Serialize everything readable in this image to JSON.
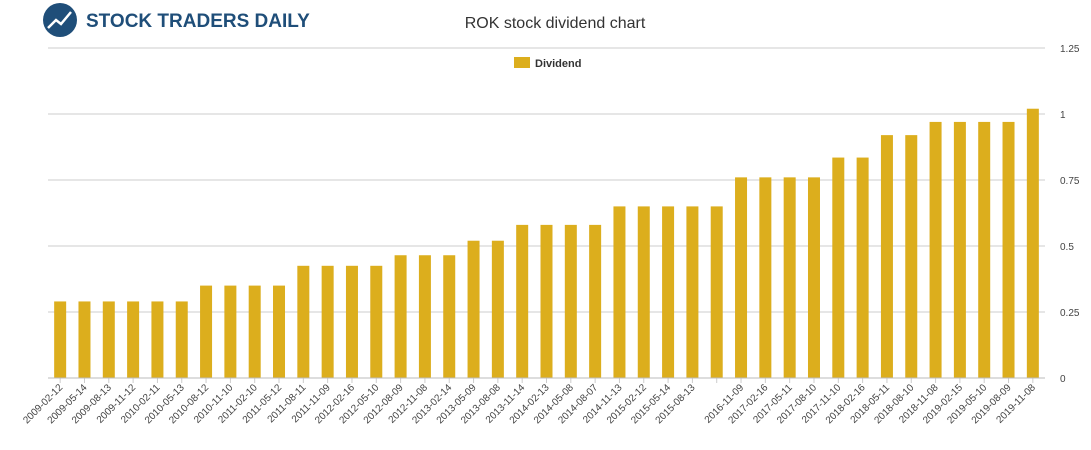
{
  "header": {
    "logo": "STOCK TRADERS DAILY"
  },
  "chart_data": {
    "type": "bar",
    "title": "ROK stock dividend chart",
    "categories": [
      "2009-02-12",
      "2009-05-14",
      "2009-08-13",
      "2009-11-12",
      "2010-02-11",
      "2010-05-13",
      "2010-08-12",
      "2010-11-10",
      "2011-02-10",
      "2011-05-12",
      "2011-08-11",
      "2011-11-09",
      "2012-02-16",
      "2012-05-10",
      "2012-08-09",
      "2012-11-08",
      "2013-02-14",
      "2013-05-09",
      "2013-08-08",
      "2013-11-14",
      "2014-02-13",
      "2014-05-08",
      "2014-08-07",
      "2014-11-13",
      "2015-02-12",
      "2015-05-14",
      "2015-08-13",
      null,
      "2016-11-09",
      "2017-02-16",
      "2017-05-11",
      "2017-08-10",
      "2017-11-10",
      "2018-02-16",
      "2018-05-11",
      "2018-08-10",
      "2018-11-08",
      "2019-02-15",
      "2019-05-10",
      "2019-08-09",
      "2019-11-08"
    ],
    "series": [
      {
        "name": "Dividend",
        "color": "#dcae1d",
        "values": [
          0.29,
          0.29,
          0.29,
          0.29,
          0.29,
          0.29,
          0.35,
          0.35,
          0.35,
          0.35,
          0.425,
          0.425,
          0.425,
          0.425,
          0.465,
          0.465,
          0.465,
          0.52,
          0.52,
          0.58,
          0.58,
          0.58,
          0.58,
          0.65,
          0.65,
          0.65,
          0.65,
          0.65,
          0.76,
          0.76,
          0.76,
          0.76,
          0.835,
          0.835,
          0.92,
          0.92,
          0.97,
          0.97,
          0.97,
          0.97,
          1.02
        ]
      }
    ],
    "ylim": [
      0,
      1.25
    ],
    "yticks": [
      0,
      0.25,
      0.5,
      0.75,
      1,
      1.25
    ],
    "grid": true,
    "legend": "top"
  }
}
